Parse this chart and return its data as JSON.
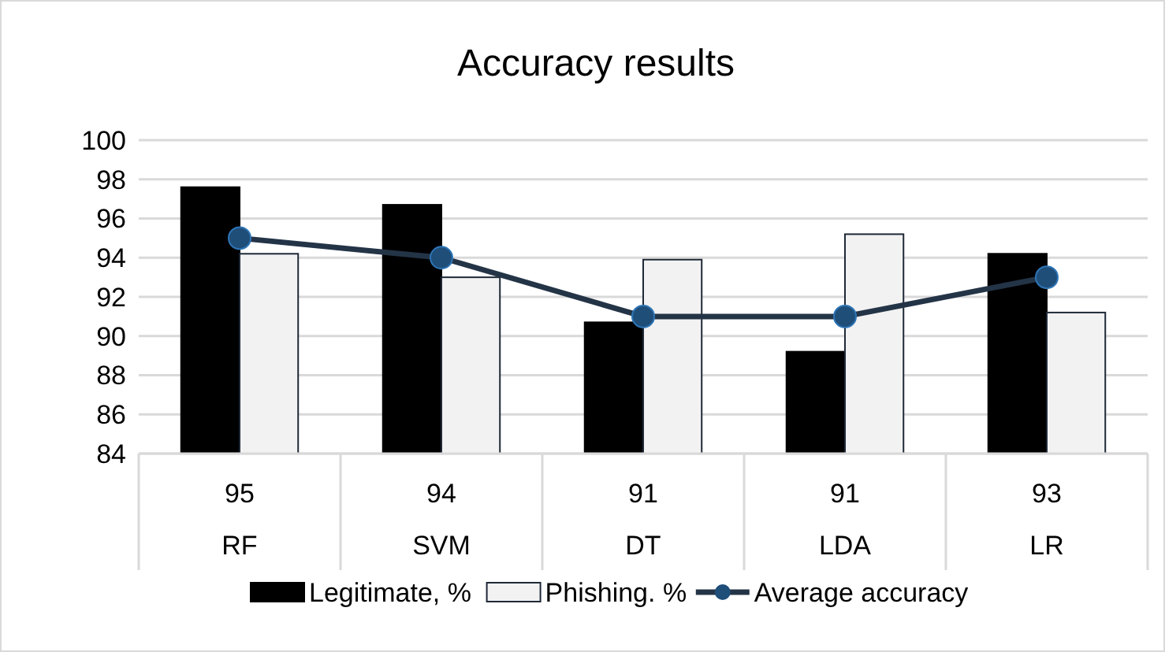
{
  "chart_data": {
    "type": "bar",
    "title": "Accuracy results",
    "categories": [
      "RF",
      "SVM",
      "DT",
      "LDA",
      "LR"
    ],
    "series": [
      {
        "name": "Legitimate, %",
        "color": "#000000",
        "values": [
          97.6,
          96.7,
          90.7,
          89.2,
          94.2
        ]
      },
      {
        "name": "Phishing. %",
        "color": "#f2f2f2",
        "values": [
          94.2,
          93.0,
          93.9,
          95.2,
          91.2
        ]
      },
      {
        "name": "Average accuracy",
        "type": "line",
        "color": "#243447",
        "marker": "circle",
        "values": [
          95,
          94,
          91,
          91,
          93
        ],
        "value_labels": [
          "95",
          "94",
          "91",
          "91",
          "93"
        ]
      }
    ],
    "ylim": [
      84,
      100
    ],
    "yticks": [
      84,
      86,
      88,
      90,
      92,
      94,
      96,
      98,
      100
    ],
    "grid": "y",
    "legend": "bottom"
  }
}
